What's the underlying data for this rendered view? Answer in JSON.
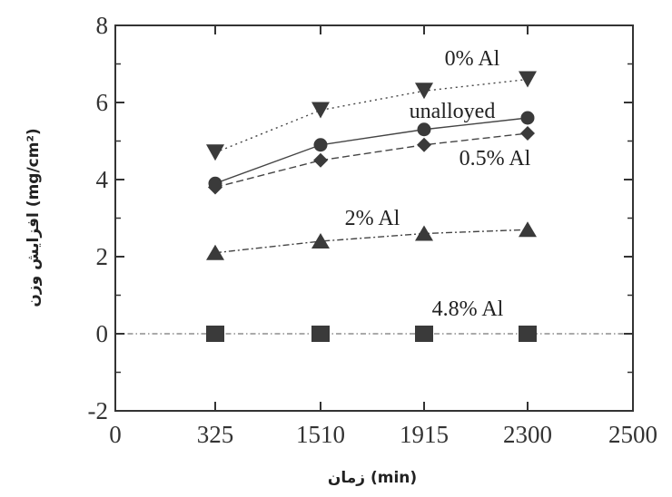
{
  "chart_data": {
    "type": "line",
    "title": "",
    "xlabel": "زمان (min)",
    "ylabel": "افزایش وزن (mg/cm²)",
    "x_ticks": [
      "0",
      "325",
      "1510",
      "1915",
      "2300",
      "2500"
    ],
    "x_categories": [
      "325",
      "1510",
      "1915",
      "2300"
    ],
    "y_ticks": [
      "-2",
      "0",
      "2",
      "4",
      "6",
      "8"
    ],
    "ylim": [
      -2,
      8
    ],
    "grid": false,
    "series": [
      {
        "name": "0% Al",
        "marker": "triangle-down",
        "dash": "dotted",
        "values": [
          4.7,
          5.8,
          6.3,
          6.6
        ]
      },
      {
        "name": "unalloyed",
        "marker": "circle",
        "dash": "solid",
        "values": [
          3.9,
          4.9,
          5.3,
          5.6
        ]
      },
      {
        "name": "0.5% Al",
        "marker": "diamond",
        "dash": "dash",
        "values": [
          3.8,
          4.5,
          4.9,
          5.2
        ]
      },
      {
        "name": "2% Al",
        "marker": "triangle-up",
        "dash": "dashdot",
        "values": [
          2.1,
          2.4,
          2.6,
          2.7
        ]
      },
      {
        "name": "4.8% Al",
        "marker": "square",
        "dash": "dashdot",
        "values": [
          0,
          0,
          0,
          0
        ]
      }
    ],
    "zero_line": {
      "value": 0
    }
  }
}
